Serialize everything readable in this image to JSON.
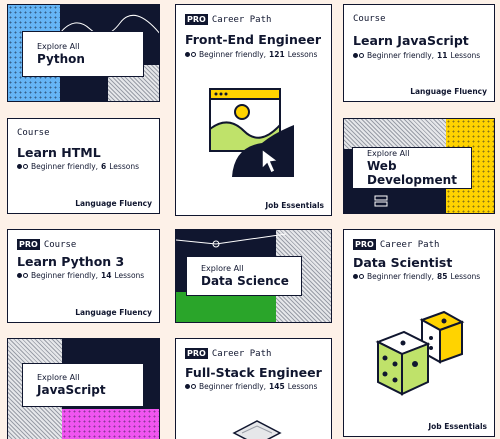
{
  "colors": {
    "background": "#fdf1e8",
    "navy": "#10162f",
    "python_blue": "#66b5f5",
    "green": "#2aa52a",
    "pink": "#f055f0",
    "yellow": "#ffd300",
    "lime": "#bfe26a"
  },
  "cards": {
    "python": {
      "explore_label": "Explore All",
      "title": "Python"
    },
    "front_end": {
      "badge": "PRO",
      "type": "Career Path",
      "title": "Front-End Engineer",
      "level": "Beginner friendly,",
      "lessons_count": "121",
      "lessons_label": "Lessons",
      "footer": "Job Essentials",
      "illustration_icon": "cursor-over-image-icon"
    },
    "learn_js": {
      "type": "Course",
      "title": "Learn JavaScript",
      "level": "Beginner friendly,",
      "lessons_count": "11",
      "lessons_label": "Lessons",
      "footer": "Language Fluency"
    },
    "learn_html": {
      "type": "Course",
      "title": "Learn HTML",
      "level": "Beginner friendly,",
      "lessons_count": "6",
      "lessons_label": "Lessons",
      "footer": "Language Fluency"
    },
    "web_dev": {
      "explore_label": "Explore All",
      "title": "Web Development"
    },
    "python3": {
      "badge": "PRO",
      "type": "Course",
      "title": "Learn Python 3",
      "level": "Beginner friendly,",
      "lessons_count": "14",
      "lessons_label": "Lessons",
      "footer": "Language Fluency"
    },
    "data_science": {
      "explore_label": "Explore All",
      "title": "Data Science"
    },
    "data_scientist": {
      "badge": "PRO",
      "type": "Career Path",
      "title": "Data Scientist",
      "level": "Beginner friendly,",
      "lessons_count": "85",
      "lessons_label": "Lessons",
      "footer": "Job Essentials",
      "illustration_icon": "dice-icon"
    },
    "javascript": {
      "explore_label": "Explore All",
      "title": "JavaScript"
    },
    "full_stack": {
      "badge": "PRO",
      "type": "Career Path",
      "title": "Full-Stack Engineer",
      "level": "Beginner friendly,",
      "lessons_count": "145",
      "lessons_label": "Lessons"
    }
  }
}
